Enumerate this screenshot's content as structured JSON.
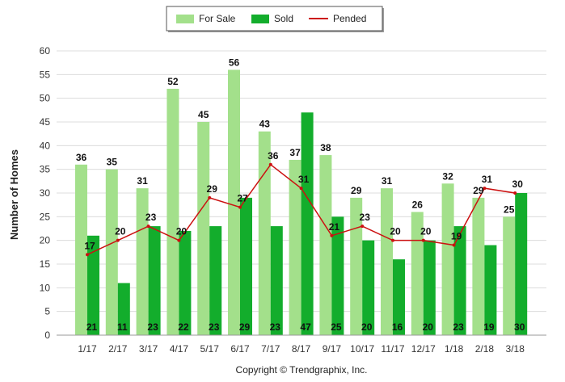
{
  "chart_data": {
    "type": "bar",
    "title": "",
    "xlabel": "",
    "ylabel": "Number of Homes",
    "ylim": [
      0,
      60
    ],
    "ytick_step": 5,
    "grid": true,
    "legend_position": "top-center",
    "categories": [
      "1/17",
      "2/17",
      "3/17",
      "4/17",
      "5/17",
      "6/17",
      "7/17",
      "8/17",
      "9/17",
      "10/17",
      "11/17",
      "12/17",
      "1/18",
      "2/18",
      "3/18"
    ],
    "series": [
      {
        "name": "For Sale",
        "kind": "bar",
        "color": "#a3e08b",
        "values": [
          36,
          35,
          31,
          52,
          45,
          56,
          43,
          37,
          38,
          29,
          31,
          26,
          32,
          29,
          25
        ]
      },
      {
        "name": "Sold",
        "kind": "bar",
        "color": "#13ad2c",
        "values": [
          21,
          11,
          23,
          22,
          23,
          29,
          23,
          47,
          25,
          20,
          16,
          20,
          23,
          19,
          30
        ]
      },
      {
        "name": "Pended",
        "kind": "line",
        "color": "#cc1111",
        "values": [
          17,
          20,
          23,
          20,
          29,
          27,
          36,
          31,
          21,
          23,
          20,
          20,
          19,
          31,
          30
        ]
      }
    ],
    "footer": "Copyright © Trendgraphix, Inc."
  }
}
